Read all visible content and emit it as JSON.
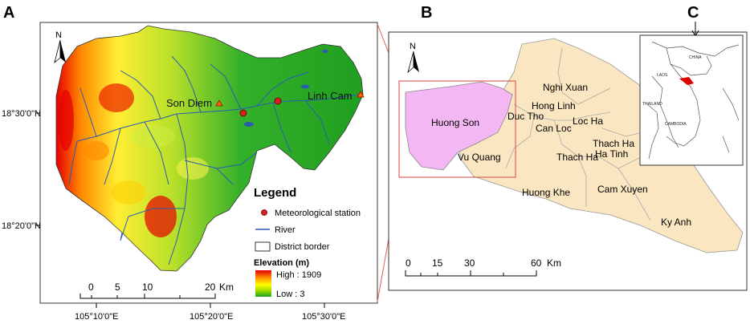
{
  "panels": {
    "a": {
      "label": "A",
      "lat_labels": [
        "18°30'0\"N",
        "18°20'0\"N"
      ],
      "lon_labels": [
        "105°10'0\"E",
        "105°20'0\"E",
        "105°30'0\"E"
      ],
      "north": "N",
      "stations": [
        "Son Diem",
        "Linh Cam"
      ],
      "legend": {
        "title": "Legend",
        "items": [
          "Meteorological station",
          "River",
          "District border"
        ],
        "elevation_title": "Elevation (m)",
        "high": "High : 1909",
        "low": "Low : 3"
      },
      "scale": {
        "ticks": [
          "0",
          "5",
          "10",
          "20"
        ],
        "unit": "Km"
      },
      "colors": {
        "high": "#e60000",
        "mid": "#ffff00",
        "low": "#1fa01f",
        "river": "#2a5db0",
        "station": "#e02020"
      }
    },
    "b": {
      "label": "B",
      "north": "N",
      "districts": [
        "Nghi Xuan",
        "Hong Linh",
        "Duc Tho",
        "Loc Ha",
        "Huong Son",
        "Can Loc",
        "Thach Ha",
        "Ha Tinh",
        "Vu Quang",
        "Thach Ha",
        "Huong Khe",
        "Cam Xuyen",
        "Ky Anh"
      ],
      "scale": {
        "ticks": [
          "0",
          "15",
          "30",
          "60"
        ],
        "unit": "Km"
      },
      "colors": {
        "province": "#fae6c0",
        "highlight": "#f3b8f3",
        "frame": "#e06060"
      }
    },
    "c": {
      "label": "C",
      "countries": [
        "CHINA",
        "LAOS",
        "THAILAND",
        "CAMBODIA"
      ]
    }
  }
}
